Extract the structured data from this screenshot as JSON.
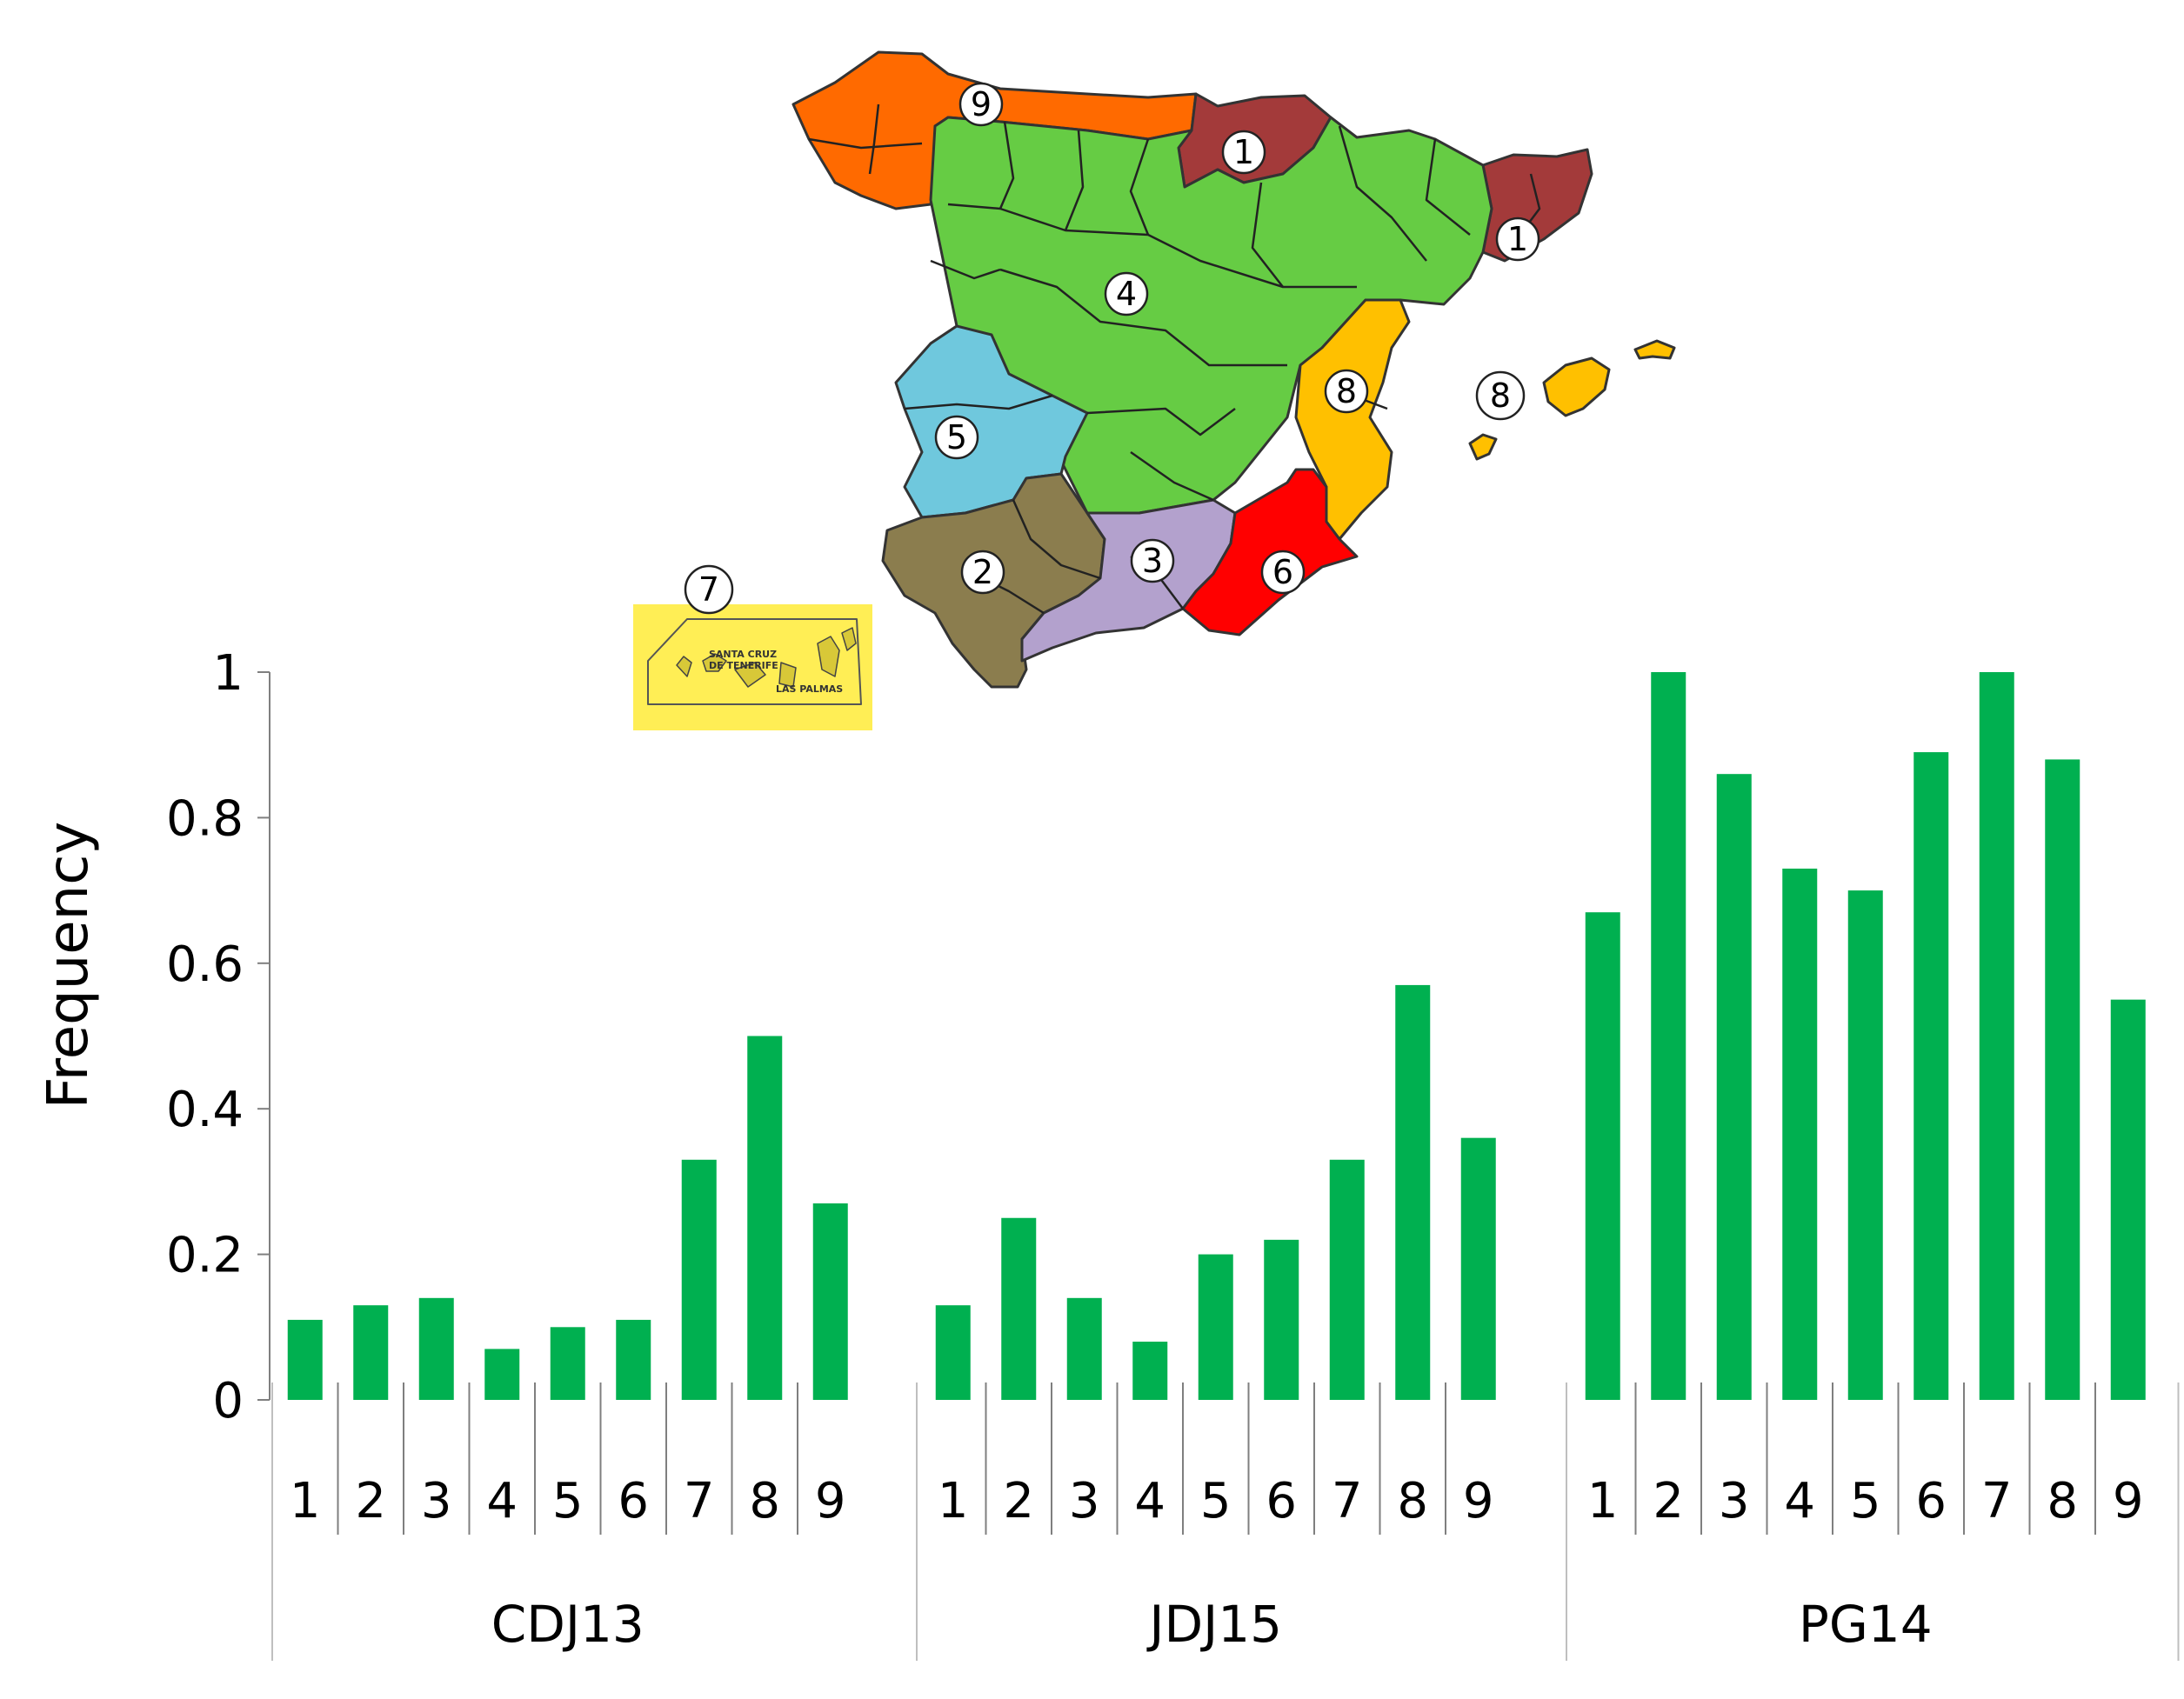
{
  "chart_data": {
    "type": "bar",
    "ylabel": "Frequency",
    "ylim": [
      0,
      1
    ],
    "yticks": [
      "0",
      "0.2",
      "0.4",
      "0.6",
      "0.8",
      "1"
    ],
    "grid": false,
    "legend": "none",
    "bar_color": "#00b050",
    "groups": [
      {
        "name": "CDJ13",
        "categories": [
          "1",
          "2",
          "3",
          "4",
          "5",
          "6",
          "7",
          "8",
          "9"
        ],
        "values": [
          0.11,
          0.13,
          0.14,
          0.07,
          0.1,
          0.11,
          0.33,
          0.5,
          0.27
        ]
      },
      {
        "name": "JDJ15",
        "categories": [
          "1",
          "2",
          "3",
          "4",
          "5",
          "6",
          "7",
          "8",
          "9"
        ],
        "values": [
          0.13,
          0.25,
          0.14,
          0.08,
          0.2,
          0.22,
          0.33,
          0.57,
          0.36
        ]
      },
      {
        "name": "PG14",
        "categories": [
          "1",
          "2",
          "3",
          "4",
          "5",
          "6",
          "7",
          "8",
          "9"
        ],
        "values": [
          0.67,
          1.0,
          0.86,
          0.73,
          0.7,
          0.89,
          1.0,
          0.88,
          0.55
        ]
      }
    ]
  },
  "map": {
    "region_labels": [
      "1",
      "1",
      "2",
      "3",
      "4",
      "5",
      "6",
      "7",
      "8",
      "8",
      "9"
    ],
    "inset_labels": [
      "SANTA CRUZ",
      "DE TENERIFE",
      "LAS PALMAS"
    ],
    "colors": {
      "region_1": "#a33a3a",
      "region_2": "#8b7d4e",
      "region_3": "#b3a1cd",
      "region_4": "#66cc44",
      "region_5": "#6fc8dd",
      "region_6": "#ff0000",
      "region_7": "#ffee55",
      "region_8": "#ffc000",
      "region_9": "#ff6a00"
    }
  }
}
